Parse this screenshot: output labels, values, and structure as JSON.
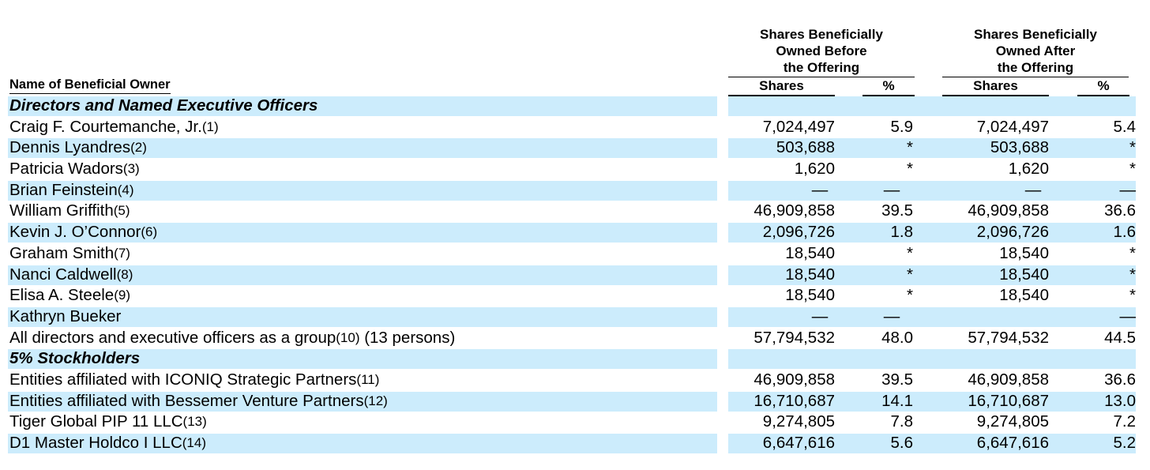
{
  "header": {
    "name_col": "Name of Beneficial Owner",
    "before_lines": [
      "Shares Beneficially",
      "Owned Before",
      "the Offering"
    ],
    "after_lines": [
      "Shares Beneficially",
      "Owned After",
      "the Offering"
    ],
    "shares_label": "Shares",
    "pct_label": "%"
  },
  "rows": [
    {
      "type": "section",
      "title": "Directors and Named Executive Officers"
    },
    {
      "type": "data",
      "name": "Craig F. Courtemanche, Jr.",
      "note": "(1)",
      "suffix": "",
      "before_shares": "7,024,497",
      "before_pct": "5.9",
      "after_shares": "7,024,497",
      "after_pct": "5.4"
    },
    {
      "type": "data",
      "name": "Dennis Lyandres",
      "note": "(2)",
      "suffix": "",
      "before_shares": "503,688",
      "before_pct": "*",
      "after_shares": "503,688",
      "after_pct": "*"
    },
    {
      "type": "data",
      "name": "Patricia Wadors",
      "note": "(3)",
      "suffix": "",
      "before_shares": "1,620",
      "before_pct": "*",
      "after_shares": "1,620",
      "after_pct": "*"
    },
    {
      "type": "data",
      "name": "Brian Feinstein",
      "note": "(4)",
      "suffix": "",
      "before_shares": "—",
      "before_pct": "—",
      "after_shares": "—",
      "after_pct": "—"
    },
    {
      "type": "data",
      "name": "William Griffith",
      "note": "(5)",
      "suffix": "",
      "before_shares": "46,909,858",
      "before_pct": "39.5",
      "after_shares": "46,909,858",
      "after_pct": "36.6"
    },
    {
      "type": "data",
      "name": "Kevin J. O’Connor",
      "note": "(6)",
      "suffix": "",
      "before_shares": "2,096,726",
      "before_pct": "1.8",
      "after_shares": "2,096,726",
      "after_pct": "1.6"
    },
    {
      "type": "data",
      "name": "Graham Smith",
      "note": "(7)",
      "suffix": "",
      "before_shares": "18,540",
      "before_pct": "*",
      "after_shares": "18,540",
      "after_pct": "*"
    },
    {
      "type": "data",
      "name": "Nanci Caldwell",
      "note": "(8)",
      "suffix": "",
      "before_shares": "18,540",
      "before_pct": "*",
      "after_shares": "18,540",
      "after_pct": "*"
    },
    {
      "type": "data",
      "name": "Elisa A. Steele",
      "note": "(9)",
      "suffix": "",
      "before_shares": "18,540",
      "before_pct": "*",
      "after_shares": "18,540",
      "after_pct": "*"
    },
    {
      "type": "data",
      "name": "Kathryn Bueker",
      "note": "",
      "suffix": "",
      "before_shares": "—",
      "before_pct": "—",
      "after_shares": "",
      "after_pct": "—"
    },
    {
      "type": "data",
      "name": "All directors and executive officers as a group",
      "note": "(10)",
      "suffix": " (13 persons)",
      "before_shares": "57,794,532",
      "before_pct": "48.0",
      "after_shares": "57,794,532",
      "after_pct": "44.5"
    },
    {
      "type": "section",
      "title": "5% Stockholders"
    },
    {
      "type": "data",
      "name": "Entities affiliated with ICONIQ Strategic Partners",
      "note": "(11)",
      "suffix": "",
      "before_shares": "46,909,858",
      "before_pct": "39.5",
      "after_shares": "46,909,858",
      "after_pct": "36.6"
    },
    {
      "type": "data",
      "name": "Entities affiliated with Bessemer Venture Partners",
      "note": "(12)",
      "suffix": "",
      "before_shares": "16,710,687",
      "before_pct": "14.1",
      "after_shares": "16,710,687",
      "after_pct": "13.0"
    },
    {
      "type": "data",
      "name": "Tiger Global PIP 11 LLC",
      "note": "(13)",
      "suffix": "",
      "before_shares": "9,274,805",
      "before_pct": "7.8",
      "after_shares": "9,274,805",
      "after_pct": "7.2"
    },
    {
      "type": "data",
      "name": "D1 Master Holdco I LLC",
      "note": "(14)",
      "suffix": "",
      "before_shares": "6,647,616",
      "before_pct": "5.6",
      "after_shares": "6,647,616",
      "after_pct": "5.2"
    }
  ],
  "colors": {
    "stripe": "#ccecfc",
    "text": "#000000"
  }
}
